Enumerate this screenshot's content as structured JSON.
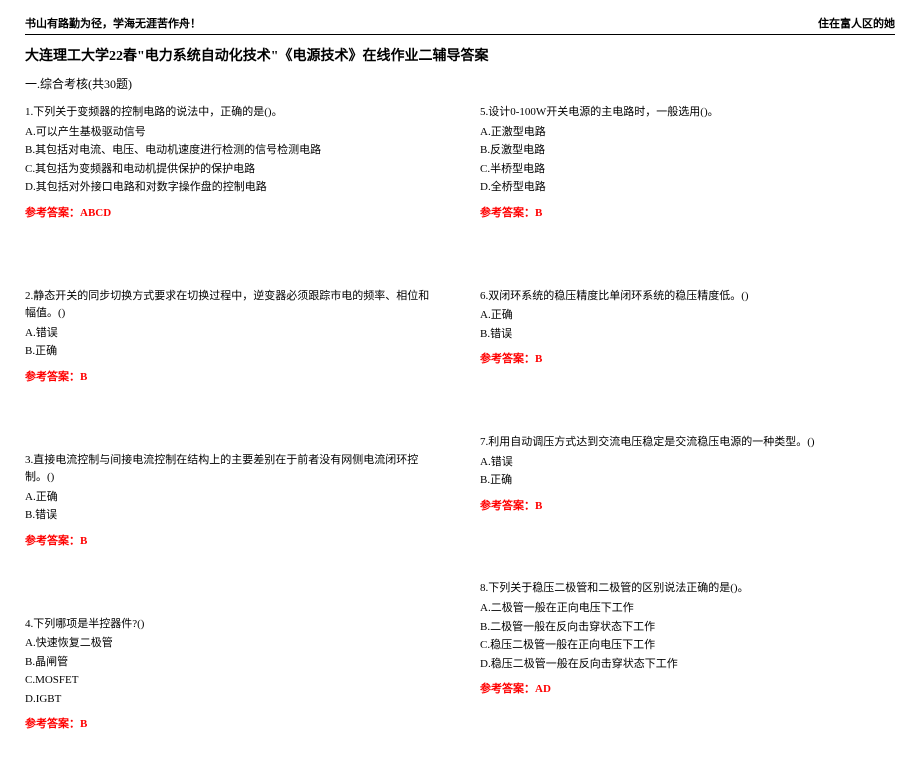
{
  "header": {
    "left": "书山有路勤为径，学海无涯苦作舟！",
    "right": "住在富人区的她"
  },
  "title": "大连理工大学22春\"电力系统自动化技术\"《电源技术》在线作业二辅导答案",
  "section_label": "一.综合考核(共30题)",
  "answer_label_prefix": "参考答案：",
  "left_questions": [
    {
      "text": "1.下列关于变频器的控制电路的说法中，正确的是()。",
      "options": [
        "A.可以产生基极驱动信号",
        "B.其包括对电流、电压、电动机速度进行检测的信号检测电路",
        "C.其包括为变频器和电动机提供保护的保护电路",
        "D.其包括对外接口电路和对数字操作盘的控制电路"
      ],
      "answer": "ABCD"
    },
    {
      "text": "2.静态开关的同步切换方式要求在切换过程中，逆变器必须跟踪市电的频率、相位和幅值。()",
      "options": [
        "A.错误",
        "B.正确"
      ],
      "answer": "B"
    },
    {
      "text": "3.直接电流控制与间接电流控制在结构上的主要差别在于前者没有网侧电流闭环控制。()",
      "options": [
        "A.正确",
        "B.错误"
      ],
      "answer": "B"
    },
    {
      "text": "4.下列哪项是半控器件?()",
      "options": [
        "A.快速恢复二极管",
        "B.晶闸管",
        "C.MOSFET",
        "D.IGBT"
      ],
      "answer": "B"
    }
  ],
  "right_questions": [
    {
      "text": "5.设计0-100W开关电源的主电路时，一般选用()。",
      "options": [
        "A.正激型电路",
        "B.反激型电路",
        "C.半桥型电路",
        "D.全桥型电路"
      ],
      "answer": "B"
    },
    {
      "text": "6.双闭环系统的稳压精度比单闭环系统的稳压精度低。()",
      "options": [
        "A.正确",
        "B.错误"
      ],
      "answer": "B"
    },
    {
      "text": "7.利用自动调压方式达到交流电压稳定是交流稳压电源的一种类型。()",
      "options": [
        "A.错误",
        "B.正确"
      ],
      "answer": "B"
    },
    {
      "text": "8.下列关于稳压二极管和二极管的区别说法正确的是()。",
      "options": [
        "A.二极管一般在正向电压下工作",
        "B.二极管一般在反向击穿状态下工作",
        "C.稳压二极管一般在正向电压下工作",
        "D.稳压二极管一般在反向击穿状态下工作"
      ],
      "answer": "AD"
    }
  ]
}
